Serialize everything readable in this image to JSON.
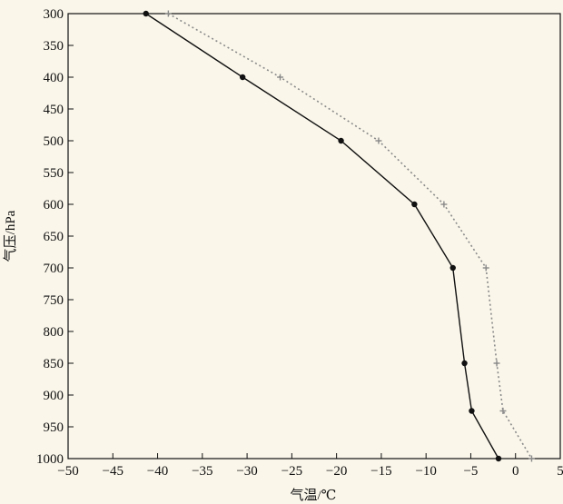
{
  "chart_data": {
    "type": "line",
    "xlabel": "气温/℃",
    "ylabel": "气压/hPa",
    "xlim": [
      -50,
      5
    ],
    "ylim": [
      300,
      1000
    ],
    "y_inverted": true,
    "x_ticks": [
      -50,
      -45,
      -40,
      -35,
      -30,
      -25,
      -20,
      -15,
      -10,
      -5,
      0,
      5
    ],
    "y_ticks": [
      300,
      350,
      400,
      450,
      500,
      550,
      600,
      650,
      700,
      750,
      800,
      850,
      900,
      950,
      1000
    ],
    "grid": false,
    "series": [
      {
        "style": "solid",
        "marker": "dot",
        "color": "#111111",
        "points": [
          {
            "x": -41.3,
            "y": 300
          },
          {
            "x": -30.5,
            "y": 400
          },
          {
            "x": -19.5,
            "y": 500
          },
          {
            "x": -11.3,
            "y": 600
          },
          {
            "x": -7.0,
            "y": 700
          },
          {
            "x": -5.7,
            "y": 850
          },
          {
            "x": -4.9,
            "y": 925
          },
          {
            "x": -1.9,
            "y": 1000
          }
        ]
      },
      {
        "style": "dotted",
        "marker": "plus",
        "color": "#8a8a8a",
        "points": [
          {
            "x": -38.8,
            "y": 300
          },
          {
            "x": -26.3,
            "y": 400
          },
          {
            "x": -15.3,
            "y": 500
          },
          {
            "x": -8.0,
            "y": 600
          },
          {
            "x": -3.3,
            "y": 700
          },
          {
            "x": -2.1,
            "y": 850
          },
          {
            "x": -1.4,
            "y": 925
          },
          {
            "x": 1.8,
            "y": 1000
          }
        ]
      }
    ]
  }
}
